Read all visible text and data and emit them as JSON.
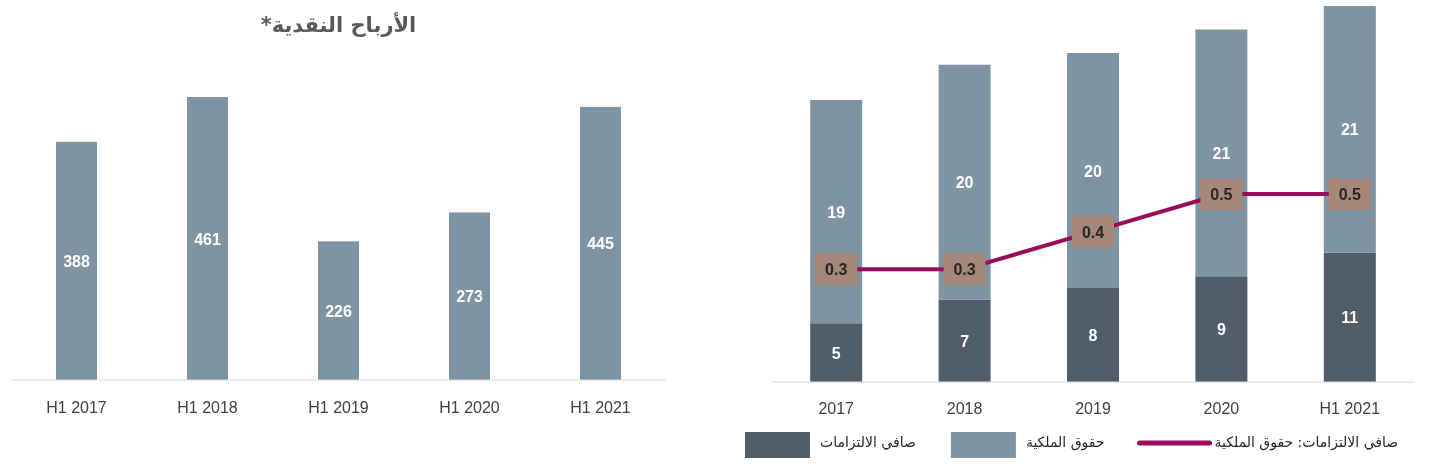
{
  "chart_data": [
    {
      "type": "bar",
      "title": "الأرباح النقدية*",
      "categories": [
        "H1 2017",
        "H1 2018",
        "H1 2019",
        "H1 2020",
        "H1 2021"
      ],
      "values": [
        388,
        461,
        226,
        273,
        445
      ],
      "color": "#7f94a3",
      "data_labels": true,
      "legend": false
    },
    {
      "type": "bar",
      "stacked": true,
      "categories": [
        "2017",
        "2018",
        "2019",
        "2020",
        "H1 2021"
      ],
      "series": [
        {
          "name": "صافي الالتزامات",
          "color": "#525d6a",
          "values": [
            5,
            7,
            8,
            9,
            11
          ]
        },
        {
          "name": "حقوق الملكية",
          "color": "#7f94a3",
          "values": [
            19,
            20,
            20,
            21,
            21
          ]
        },
        {
          "name": "صافي الالتزامات: حقوق الملكية",
          "type": "line",
          "axis": "y2",
          "marker": "square",
          "color": "#9b0a5b",
          "values": [
            0.3,
            0.3,
            0.4,
            0.5,
            0.5
          ]
        }
      ],
      "data_labels": true,
      "legend": "bottom",
      "line_style": "solid"
    }
  ]
}
